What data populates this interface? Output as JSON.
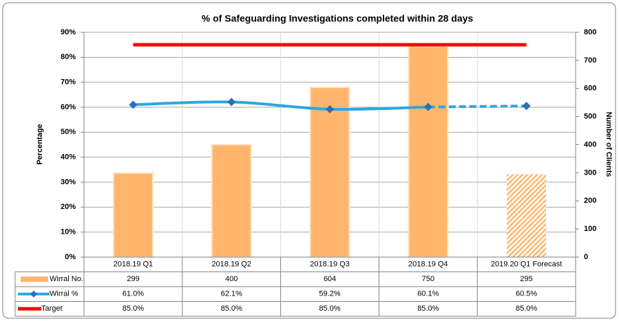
{
  "chart_data": {
    "type": "combo",
    "title": "% of Safeguarding Investigations completed within 28 days",
    "y_label": "Percentage",
    "y2_label": "Number of Clients",
    "categories": [
      "2018.19 Q1",
      "2018.19 Q2",
      "2018.19 Q3",
      "2018.19 Q4",
      "2019.20 Q1 Forecast"
    ],
    "series": [
      {
        "name": "Wirral No.",
        "type": "bar",
        "axis": "y2",
        "color": "#ffb66c",
        "values": [
          299,
          400,
          604,
          750,
          295
        ]
      },
      {
        "name": "Wirral %",
        "type": "line",
        "color": "#29a8e0",
        "marker_color": "#2a6fb8",
        "values": [
          61.0,
          62.1,
          59.2,
          60.1,
          60.5
        ],
        "value_labels": [
          "61.0%",
          "62.1%",
          "59.2%",
          "60.1%",
          "60.5%"
        ]
      },
      {
        "name": "Target",
        "type": "line",
        "color": "#ff0000",
        "values": [
          85.0,
          85.0,
          85.0,
          85.0,
          85.0
        ],
        "value_labels": [
          "85.0%",
          "85.0%",
          "85.0%",
          "85.0%",
          "85.0%"
        ]
      }
    ],
    "ylim": [
      0,
      90
    ],
    "yticks": [
      {
        "value": 0,
        "label": "0%"
      },
      {
        "value": 10,
        "label": "10%"
      },
      {
        "value": 20,
        "label": "20%"
      },
      {
        "value": 30,
        "label": "30%"
      },
      {
        "value": 40,
        "label": "40%"
      },
      {
        "value": 50,
        "label": "50%"
      },
      {
        "value": 60,
        "label": "60%"
      },
      {
        "value": 70,
        "label": "70%"
      },
      {
        "value": 80,
        "label": "80%"
      },
      {
        "value": 90,
        "label": "90%"
      }
    ],
    "y2lim": [
      0,
      800
    ],
    "y2ticks": [
      0,
      100,
      200,
      300,
      400,
      500,
      600,
      700,
      800
    ],
    "grid": true
  }
}
